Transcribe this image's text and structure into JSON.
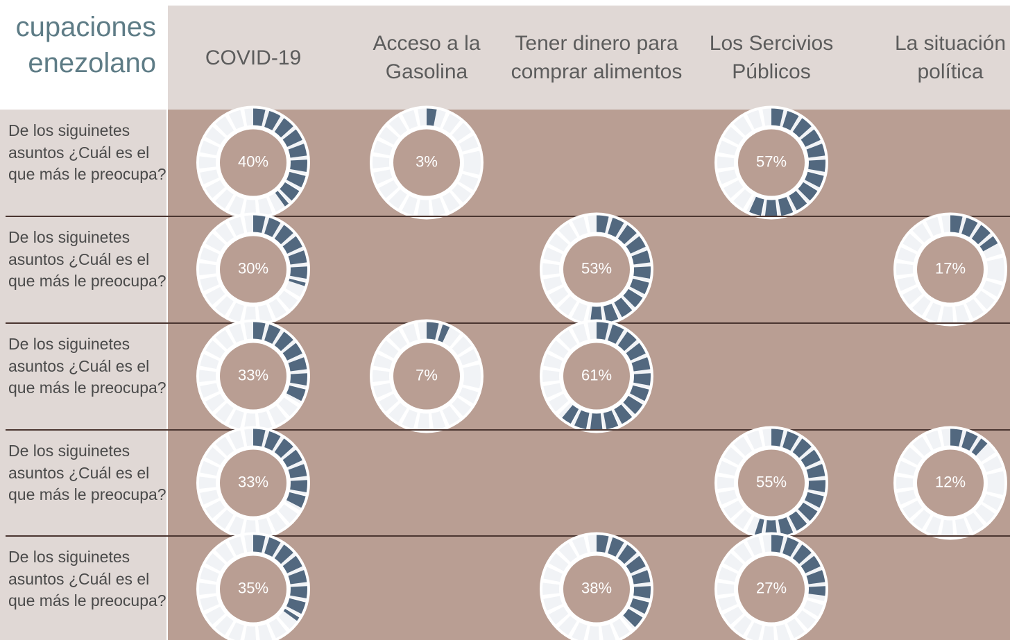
{
  "title_lines": [
    "cupaciones",
    "enezolano"
  ],
  "columns": [
    "COVID-19",
    "Acceso a la Gasolina",
    "Tener dinero para comprar alimentos",
    "Los Sercivios Públicos",
    "La situación política"
  ],
  "rows": [
    {
      "label": "De los siguinetes asuntos ¿Cuál es el que más le preocupa?",
      "values": [
        40,
        3,
        null,
        57,
        null
      ],
      "value_labels": [
        "40%",
        "3%",
        null,
        "57%",
        null
      ]
    },
    {
      "label": "De los siguinetes asuntos ¿Cuál es el que más le preocupa?",
      "values": [
        30,
        null,
        53,
        null,
        17
      ],
      "value_labels": [
        "30%",
        null,
        "53%",
        null,
        "17%"
      ]
    },
    {
      "label": "De los siguinetes asuntos ¿Cuál es el que más le preocupa?",
      "values": [
        33,
        7,
        61,
        null,
        null
      ],
      "value_labels": [
        "33%",
        "7%",
        "61%",
        null,
        null
      ]
    },
    {
      "label": "De los siguinetes asuntos ¿Cuál es el que más le preocupa?",
      "values": [
        33,
        null,
        null,
        55,
        12
      ],
      "value_labels": [
        "33%",
        null,
        null,
        "55%",
        "12%"
      ]
    },
    {
      "label": "De los siguinetes asuntos ¿Cuál es el que más le preocupa?",
      "values": [
        35,
        null,
        38,
        27,
        null
      ],
      "value_labels": [
        "35%",
        null,
        "38%",
        "27%",
        null
      ]
    }
  ],
  "color": "#52687f"
}
